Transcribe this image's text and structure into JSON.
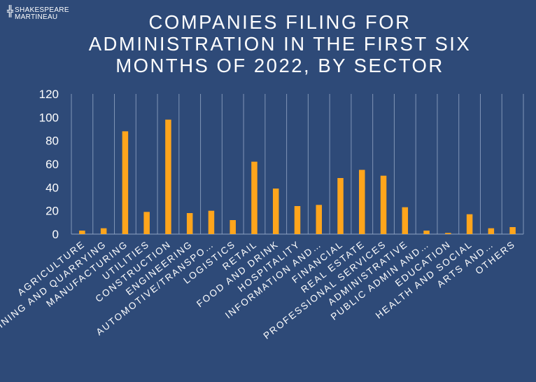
{
  "brand": {
    "name_line1": "SHAKESPEARE",
    "name_line2": "MARTINEAU"
  },
  "title_lines": [
    "COMPANIES FILING FOR",
    "ADMINISTRATION IN THE FIRST SIX",
    "MONTHS OF 2022, BY SECTOR"
  ],
  "colors": {
    "background": "#2E4A78",
    "bar": "#FFA51C",
    "text": "#FFFFFF",
    "grid": "#8FA3C2"
  },
  "chart_data": {
    "type": "bar",
    "title": "COMPANIES FILING FOR ADMINISTRATION IN THE FIRST SIX MONTHS OF 2022, BY SECTOR",
    "categories": [
      "AGRICULTURE",
      "MINING AND QUARRYING",
      "MANUFACTURING",
      "UTILITIES",
      "CONSTRUCTION",
      "ENGINEERING",
      "AUTOMOTIVE/TRANSPO…",
      "LOGISTICS",
      "RETAIL",
      "FOOD AND DRINK",
      "HOSPITALITY",
      "INFORMATION AND…",
      "FINANCIAL",
      "REAL ESTATE",
      "PROFESSIONAL SERVICES",
      "ADMINISTRATIVE",
      "PUBLIC ADMIN AND…",
      "EDUCATION",
      "HEALTH AND SOCIAL",
      "ARTS AND…",
      "OTHERS"
    ],
    "values": [
      3,
      5,
      88,
      19,
      98,
      18,
      20,
      12,
      62,
      39,
      24,
      25,
      48,
      55,
      50,
      23,
      3,
      1,
      17,
      5,
      6
    ],
    "ylim": [
      0,
      120
    ],
    "yticks": [
      0,
      20,
      40,
      60,
      80,
      100,
      120
    ],
    "xlabel": "",
    "ylabel": "",
    "grid": "vertical separators between categories",
    "legend": "none"
  }
}
